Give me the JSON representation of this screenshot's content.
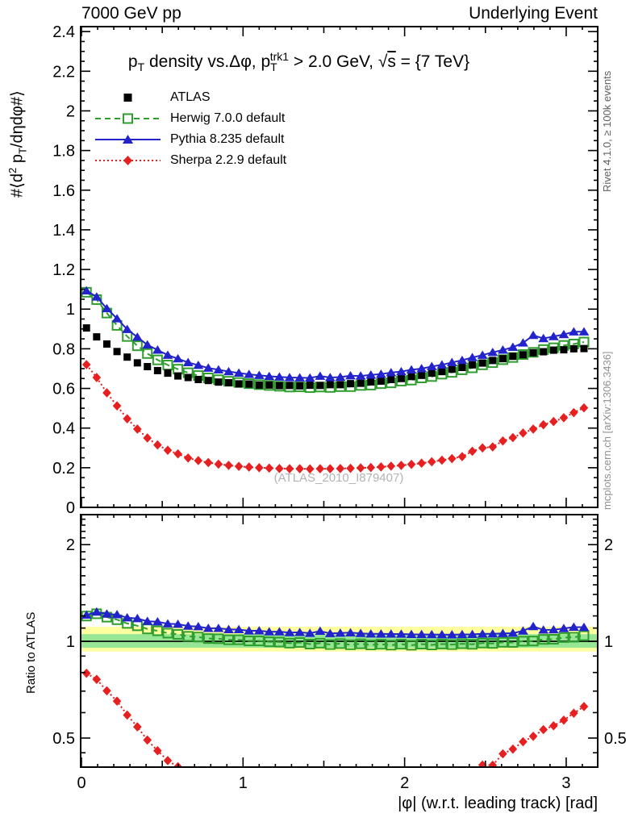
{
  "header": {
    "left": "7000 GeV pp",
    "right": "Underlying Event"
  },
  "margin_notes": {
    "top": "Rivet 4.1.0, ≥ 100k events",
    "bottom": "mcplots.cern.ch [arXiv:1306.3436]"
  },
  "plot_title": {
    "p1": "p",
    "p1sub": "T",
    "p2": " density vs.Δφ, p",
    "p3sub": "T",
    "p3sup": "trk1",
    "p4": " > 2.0 GeV, ",
    "sqrt_sign": "√",
    "s": "s",
    "p5": " = {7 TeV}"
  },
  "watermark": "(ATLAS_2010_I879407)",
  "y_axis_title": {
    "a": "#⟨d",
    "b": "2",
    "c": " p",
    "d": "T",
    "e": "/dηdφ#⟩"
  },
  "ratio_axis_title": "Ratio to ATLAS",
  "x_axis_title": "|φ| (w.r.t. leading track) [rad]",
  "legend": {
    "items": [
      {
        "label": "ATLAS"
      },
      {
        "label": "Herwig 7.0.0 default"
      },
      {
        "label": "Pythia 8.235 default"
      },
      {
        "label": "Sherpa 2.2.9 default"
      }
    ]
  },
  "colors": {
    "atlas": "#000000",
    "herwig": "#2f9e2f",
    "pythia": "#2323cc",
    "sherpa": "#e62020",
    "band_yellow": "#ffffa0",
    "band_green": "#96e696",
    "frame": "#000000"
  },
  "chart_data": {
    "type": "line",
    "title": "pT density vs.Δφ, pT^trk1 > 2.0 GeV, √s = {7 TeV}",
    "xlabel": "|φ| (w.r.t. leading track) [rad]",
    "ylabel": "#⟨d² pT/dηdφ#⟩",
    "ratio_ylabel": "Ratio to ATLAS",
    "x_range": [
      -0.005,
      3.195
    ],
    "main_y_range": [
      0,
      2.425
    ],
    "ratio_y_range": [
      0.406,
      2.48
    ],
    "ratio_log": true,
    "x_ticks": [
      {
        "v": 0,
        "t": "0"
      },
      {
        "v": 1,
        "t": "1"
      },
      {
        "v": 2,
        "t": "2"
      },
      {
        "v": 3,
        "t": "3"
      }
    ],
    "main_y_ticks": [
      {
        "v": 0,
        "t": "0"
      },
      {
        "v": 0.2,
        "t": "0.2"
      },
      {
        "v": 0.4,
        "t": "0.4"
      },
      {
        "v": 0.6,
        "t": "0.6"
      },
      {
        "v": 0.8,
        "t": "0.8"
      },
      {
        "v": 1,
        "t": "1"
      },
      {
        "v": 1.2,
        "t": "1.2"
      },
      {
        "v": 1.4,
        "t": "1.4"
      },
      {
        "v": 1.6,
        "t": "1.6"
      },
      {
        "v": 1.8,
        "t": "1.8"
      },
      {
        "v": 2,
        "t": "2"
      },
      {
        "v": 2.2,
        "t": "2.2"
      },
      {
        "v": 2.4,
        "t": "2.4"
      }
    ],
    "ratio_y_ticks": [
      {
        "v": 0.5,
        "t": "0.5"
      },
      {
        "v": 1,
        "t": "1"
      },
      {
        "v": 2,
        "t": "2"
      }
    ],
    "ratio_minor_ticks": [
      0.45,
      0.5,
      0.6,
      0.7,
      0.8,
      0.9,
      1,
      1.1,
      1.2,
      1.3,
      1.4,
      1.5,
      1.6,
      1.7,
      1.8,
      1.9,
      2,
      2.1,
      2.2,
      2.3,
      2.4
    ],
    "bands": {
      "yellow": [
        0.93,
        1.11
      ],
      "green": [
        0.955,
        1.053
      ],
      "reference_line": 1
    },
    "x": [
      0.031,
      0.094,
      0.157,
      0.22,
      0.283,
      0.346,
      0.408,
      0.471,
      0.534,
      0.597,
      0.66,
      0.723,
      0.785,
      0.848,
      0.911,
      0.974,
      1.037,
      1.1,
      1.162,
      1.225,
      1.288,
      1.351,
      1.414,
      1.477,
      1.539,
      1.602,
      1.665,
      1.728,
      1.791,
      1.854,
      1.916,
      1.979,
      2.042,
      2.105,
      2.168,
      2.231,
      2.293,
      2.356,
      2.419,
      2.482,
      2.545,
      2.608,
      2.67,
      2.733,
      2.796,
      2.859,
      2.922,
      2.985,
      3.047,
      3.11
    ],
    "series": [
      {
        "name": "ATLAS",
        "marker": "square",
        "line": "none",
        "color": "#000000",
        "is_reference": true,
        "values": [
          0.905,
          0.86,
          0.824,
          0.786,
          0.758,
          0.729,
          0.71,
          0.69,
          0.677,
          0.663,
          0.655,
          0.645,
          0.64,
          0.632,
          0.629,
          0.623,
          0.622,
          0.617,
          0.617,
          0.614,
          0.615,
          0.613,
          0.616,
          0.615,
          0.619,
          0.619,
          0.624,
          0.626,
          0.633,
          0.637,
          0.645,
          0.65,
          0.66,
          0.666,
          0.677,
          0.685,
          0.697,
          0.706,
          0.719,
          0.728,
          0.741,
          0.75,
          0.762,
          0.77,
          0.78,
          0.785,
          0.793,
          0.795,
          0.8,
          0.801
        ]
      },
      {
        "name": "Herwig 7.0.0 default",
        "marker": "open-square",
        "line": "dashed",
        "color": "#2f9e2f",
        "is_reference": false,
        "values": [
          1.085,
          1.048,
          0.98,
          0.918,
          0.862,
          0.815,
          0.776,
          0.744,
          0.718,
          0.697,
          0.679,
          0.665,
          0.653,
          0.644,
          0.636,
          0.63,
          0.624,
          0.619,
          0.615,
          0.611,
          0.607,
          0.608,
          0.604,
          0.607,
          0.605,
          0.609,
          0.609,
          0.615,
          0.617,
          0.624,
          0.628,
          0.637,
          0.642,
          0.653,
          0.66,
          0.672,
          0.681,
          0.694,
          0.704,
          0.719,
          0.73,
          0.745,
          0.756,
          0.771,
          0.782,
          0.796,
          0.805,
          0.817,
          0.824,
          0.834
        ]
      },
      {
        "name": "Pythia 8.235 default",
        "marker": "triangle",
        "line": "solid",
        "color": "#2323cc",
        "is_reference": false,
        "values": [
          1.093,
          1.062,
          1.003,
          0.952,
          0.898,
          0.859,
          0.82,
          0.794,
          0.768,
          0.75,
          0.731,
          0.717,
          0.703,
          0.694,
          0.685,
          0.678,
          0.671,
          0.666,
          0.661,
          0.658,
          0.655,
          0.654,
          0.653,
          0.662,
          0.655,
          0.657,
          0.664,
          0.663,
          0.668,
          0.672,
          0.68,
          0.685,
          0.694,
          0.7,
          0.711,
          0.719,
          0.731,
          0.742,
          0.756,
          0.768,
          0.782,
          0.794,
          0.808,
          0.83,
          0.868,
          0.852,
          0.862,
          0.872,
          0.886,
          0.886
        ]
      },
      {
        "name": "Sherpa 2.2.9 default",
        "marker": "diamond",
        "line": "dotted",
        "color": "#e62020",
        "is_reference": false,
        "values": [
          0.72,
          0.655,
          0.578,
          0.512,
          0.447,
          0.395,
          0.35,
          0.315,
          0.288,
          0.27,
          0.249,
          0.236,
          0.226,
          0.218,
          0.212,
          0.207,
          0.203,
          0.2,
          0.198,
          0.196,
          0.195,
          0.195,
          0.194,
          0.195,
          0.195,
          0.196,
          0.197,
          0.199,
          0.201,
          0.204,
          0.208,
          0.212,
          0.217,
          0.223,
          0.23,
          0.238,
          0.246,
          0.256,
          0.283,
          0.3,
          0.305,
          0.335,
          0.352,
          0.375,
          0.395,
          0.417,
          0.433,
          0.452,
          0.478,
          0.502
        ]
      }
    ]
  }
}
